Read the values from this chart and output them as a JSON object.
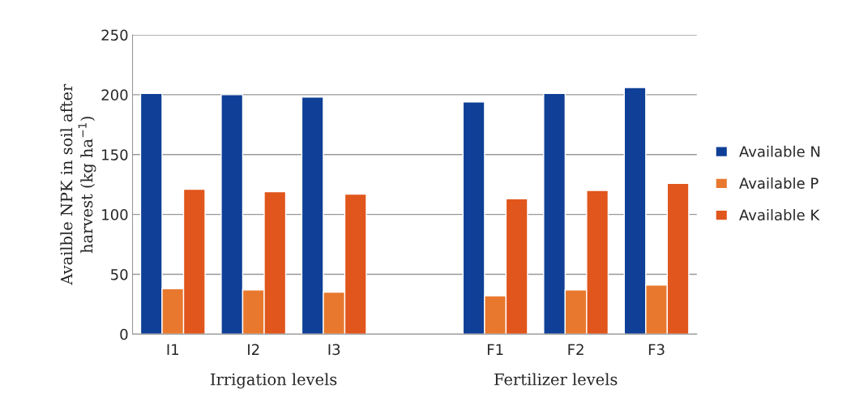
{
  "chart_data": {
    "type": "bar",
    "ylabel": "Availble NPK in soil after\nharvest (kg ha$^{−1}$)",
    "categories": [
      "I1",
      "I2",
      "I3",
      null,
      "F1",
      "F2",
      "F3"
    ],
    "series": [
      {
        "name": "Available N",
        "color": "#0f3f96",
        "values": [
          201,
          200,
          198,
          null,
          194,
          201,
          206
        ]
      },
      {
        "name": "Available P",
        "color": "#e8782e",
        "values": [
          38,
          37,
          35,
          null,
          32,
          37,
          41
        ]
      },
      {
        "name": "Available K",
        "color": "#e0561c",
        "values": [
          121,
          119,
          117,
          null,
          113,
          120,
          126
        ]
      }
    ],
    "ylim": [
      0,
      250
    ],
    "yticks": [
      0,
      50,
      100,
      150,
      200,
      250
    ],
    "grid": "y",
    "legend": "right",
    "annotations": [
      "Irrigation levels",
      "Fertilizer levels"
    ]
  }
}
